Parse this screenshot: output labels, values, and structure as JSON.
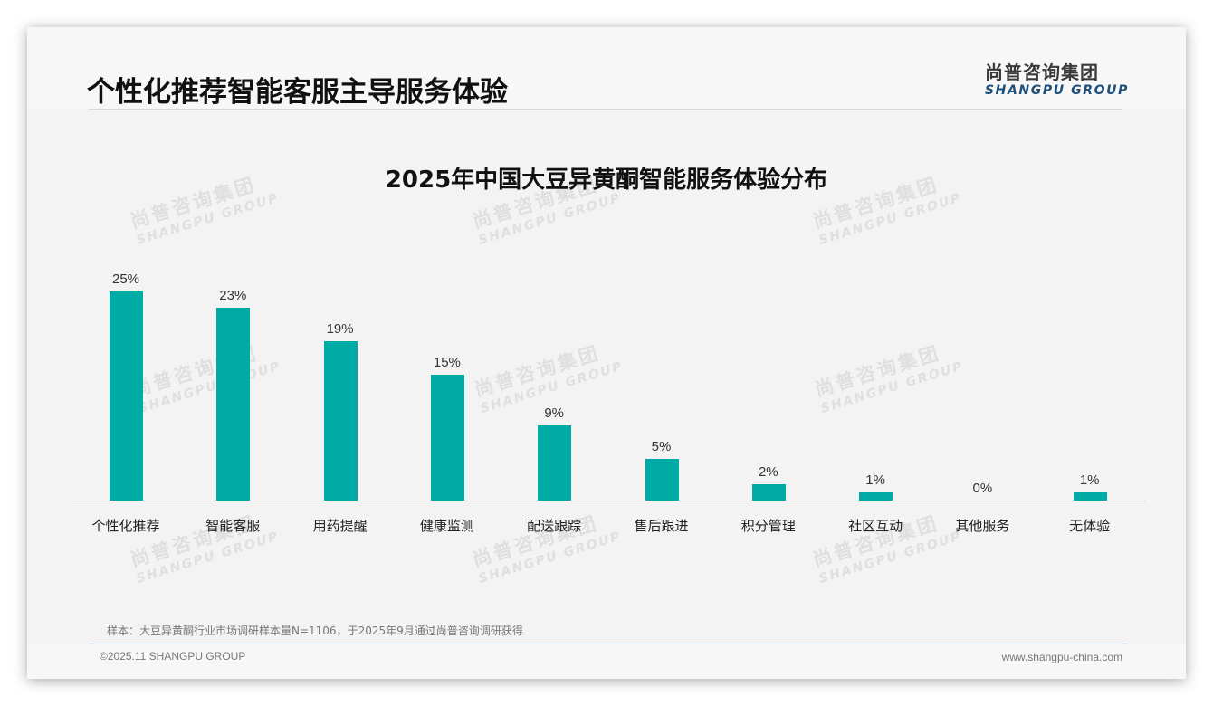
{
  "header": {
    "title": "个性化推荐智能客服主导服务体验",
    "logo_cn": "尚普咨询集团",
    "logo_en": "SHANGPU GROUP"
  },
  "watermark": {
    "cn": "尚普咨询集团",
    "en": "SHANGPU GROUP"
  },
  "chart_data": {
    "type": "bar",
    "title": "2025年中国大豆异黄酮智能服务体验分布",
    "xlabel": "",
    "ylabel": "",
    "ylim": [
      0,
      25
    ],
    "grid": false,
    "legend": "none",
    "bar_color": "#00aba5",
    "categories": [
      "个性化推荐",
      "智能客服",
      "用药提醒",
      "健康监测",
      "配送跟踪",
      "售后跟进",
      "积分管理",
      "社区互动",
      "其他服务",
      "无体验"
    ],
    "values": [
      25,
      23,
      19,
      15,
      9,
      5,
      2,
      1,
      0,
      1
    ],
    "value_labels": [
      "25%",
      "23%",
      "19%",
      "15%",
      "9%",
      "5%",
      "2%",
      "1%",
      "0%",
      "1%"
    ],
    "unit": "%"
  },
  "footer": {
    "note": "样本：大豆异黄酮行业市场调研样本量N=1106，于2025年9月通过尚普咨询调研获得",
    "copyright": "©2025.11 SHANGPU GROUP",
    "website": "www.shangpu-china.com"
  }
}
